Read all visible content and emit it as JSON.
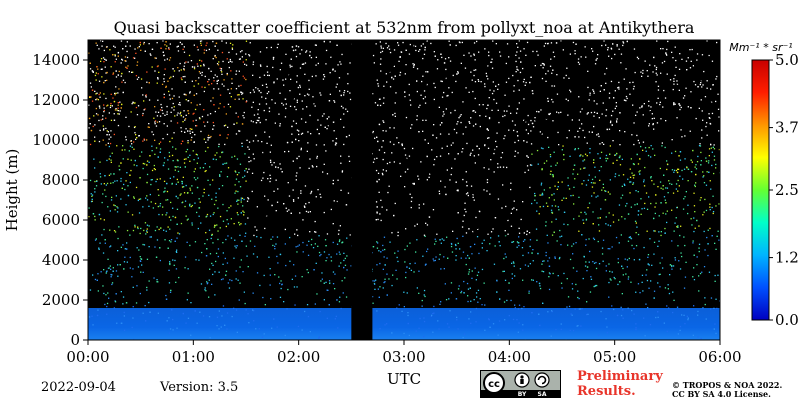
{
  "chart_data": {
    "type": "heatmap",
    "title": "Quasi backscatter coefficient at 532nm from pollyxt_noa at Antikythera",
    "xlabel": "UTC",
    "ylabel": "Height (m)",
    "x_ticks": [
      "00:00",
      "01:00",
      "02:00",
      "03:00",
      "04:00",
      "05:00",
      "06:00"
    ],
    "y_ticks": [
      0,
      2000,
      4000,
      6000,
      8000,
      10000,
      12000,
      14000
    ],
    "xlim": [
      "00:00",
      "06:00"
    ],
    "ylim": [
      0,
      15000
    ],
    "colorbar": {
      "unit": "Mm⁻¹ * sr⁻¹",
      "ticks": [
        "0.0",
        "1.2",
        "2.5",
        "3.7",
        "5.0"
      ],
      "range": [
        0,
        5.0
      ],
      "colors": [
        "#0000c0",
        "#0050ff",
        "#00b4ff",
        "#00ffc8",
        "#64ff32",
        "#ffff00",
        "#ff9600",
        "#ff1e00",
        "#c80000"
      ]
    },
    "data_gap": {
      "start": "02:30",
      "end": "02:42"
    },
    "background_color": "#000000"
  },
  "footer": {
    "date": "2022-09-04",
    "version": "Version: 3.5",
    "preliminary": [
      "Preliminary",
      "Results."
    ],
    "copyright": [
      "© TROPOS & NOA 2022.",
      "CC BY SA 4.0 License."
    ],
    "license_badge": {
      "cc": "cc",
      "by": "BY",
      "sa": "SA"
    }
  }
}
